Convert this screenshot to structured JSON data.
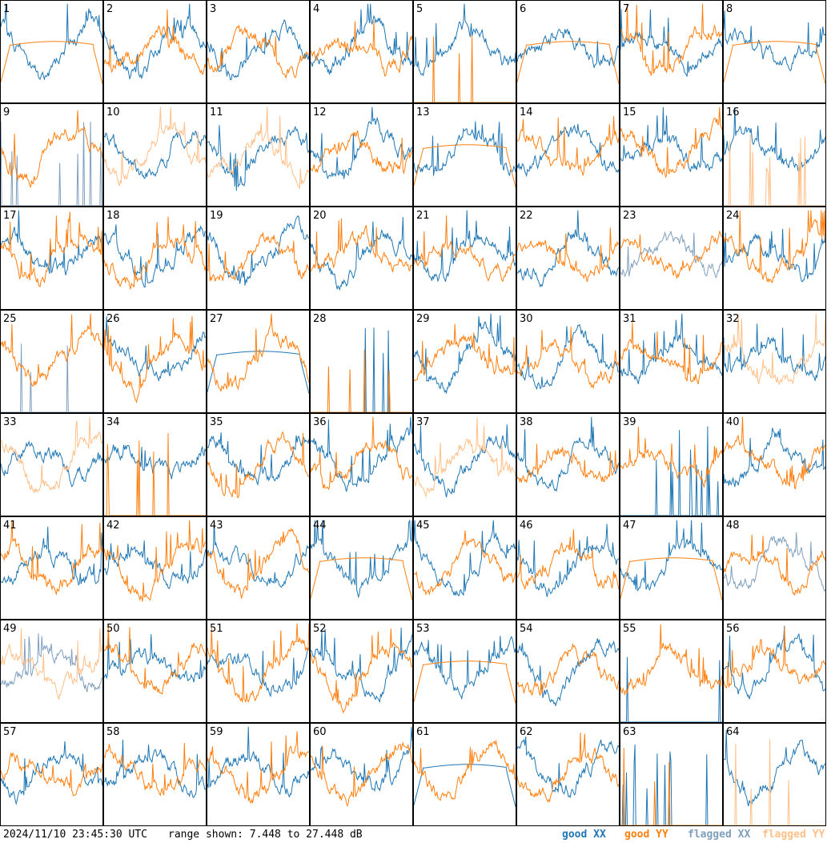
{
  "chart_data": {
    "type": "line",
    "layout": "small-multiples 8x8",
    "panels": [
      "1",
      "2",
      "3",
      "4",
      "5",
      "6",
      "7",
      "8",
      "9",
      "10",
      "11",
      "12",
      "13",
      "14",
      "15",
      "16",
      "17",
      "18",
      "19",
      "20",
      "21",
      "22",
      "23",
      "24",
      "25",
      "26",
      "27",
      "28",
      "29",
      "30",
      "31",
      "32",
      "33",
      "34",
      "35",
      "36",
      "37",
      "38",
      "39",
      "40",
      "41",
      "42",
      "43",
      "44",
      "45",
      "46",
      "47",
      "48",
      "49",
      "50",
      "51",
      "52",
      "53",
      "54",
      "55",
      "56",
      "57",
      "58",
      "59",
      "60",
      "61",
      "62",
      "63",
      "64"
    ],
    "ylim": [
      7.448,
      27.448
    ],
    "yunit": "dB",
    "series": [
      {
        "name": "good XX",
        "color": "#1f77b4"
      },
      {
        "name": "good YY",
        "color": "#ff7f0e"
      },
      {
        "name": "flagged XX",
        "color": "#7f9fbf"
      },
      {
        "name": "flagged YY",
        "color": "#ffbf87"
      }
    ],
    "panel_state": {
      "1": "flat_yy",
      "5": "sparse_yy",
      "6": "flat_yy",
      "8": "flat_yy",
      "9": "flagged_xx_sparse",
      "10": "flagged_yy",
      "11": "flagged_yy",
      "13": "flat_yy",
      "16": "flagged_yy_sparse",
      "23": "flagged_xx",
      "25": "sparse_xx_flag",
      "27": "flat_xx",
      "28": "sparse_both",
      "32": "flagged_yy_full",
      "33": "flagged_yy",
      "34": "sparse_yy",
      "37": "flagged_yy",
      "39": "sparse_xx",
      "44": "flat_yy",
      "47": "flat_yy",
      "48": "flagged_xx",
      "49": "flagged_both",
      "53": "flat_yy",
      "55": "sparse_xx",
      "61": "flat_xx",
      "63": "sparse_both",
      "64": "flagged_yy_sparse"
    }
  },
  "footer": {
    "timestamp": "2024/11/10 23:45:30 UTC",
    "range": "range shown: 7.448 to 27.448 dB"
  },
  "legend": {
    "good_xx": "good XX",
    "good_yy": "good YY",
    "flagged_xx": "flagged XX",
    "flagged_yy": "flagged YY"
  }
}
